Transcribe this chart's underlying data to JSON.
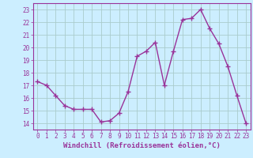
{
  "x": [
    0,
    1,
    2,
    3,
    4,
    5,
    6,
    7,
    8,
    9,
    10,
    11,
    12,
    13,
    14,
    15,
    16,
    17,
    18,
    19,
    20,
    21,
    22,
    23
  ],
  "y": [
    17.3,
    17.0,
    16.2,
    15.4,
    15.1,
    15.1,
    15.1,
    14.1,
    14.2,
    14.8,
    16.5,
    19.3,
    19.7,
    20.4,
    17.0,
    19.7,
    22.2,
    22.3,
    23.0,
    21.5,
    20.3,
    18.5,
    16.2,
    14.0
  ],
  "line_color": "#993399",
  "marker": "+",
  "marker_size": 4,
  "linewidth": 1.0,
  "xlabel": "Windchill (Refroidissement éolien,°C)",
  "xlabel_fontsize": 6.5,
  "ylabel_ticks": [
    14,
    15,
    16,
    17,
    18,
    19,
    20,
    21,
    22,
    23
  ],
  "xtick_labels": [
    "0",
    "1",
    "2",
    "3",
    "4",
    "5",
    "6",
    "7",
    "8",
    "9",
    "10",
    "11",
    "12",
    "13",
    "14",
    "15",
    "16",
    "17",
    "18",
    "19",
    "20",
    "21",
    "22",
    "23"
  ],
  "ylim": [
    13.5,
    23.5
  ],
  "xlim": [
    -0.5,
    23.5
  ],
  "background_color": "#cceeff",
  "grid_color": "#aacccc",
  "tick_color": "#993399",
  "tick_fontsize": 5.5,
  "spine_color": "#993399"
}
